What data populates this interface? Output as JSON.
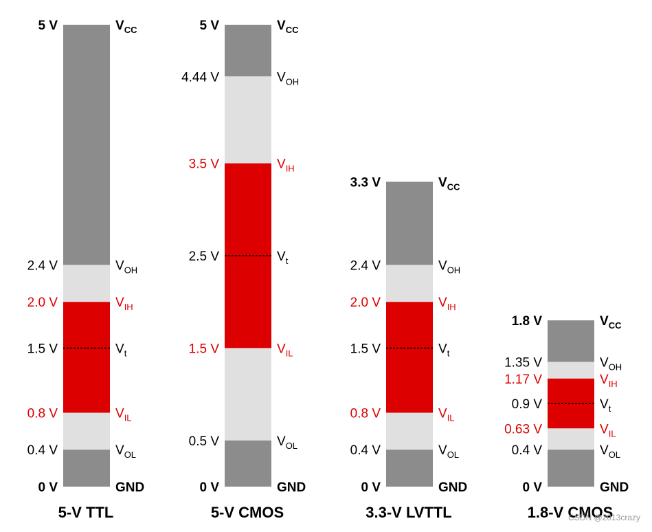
{
  "colors": {
    "gray": "#8c8c8c",
    "light": "#e0e0e0",
    "red": "#dd0000",
    "text": "#000000",
    "red_text": "#dd0000",
    "watermark": "#999999"
  },
  "watermark": "CSDN @2013crazy",
  "diagrams": [
    {
      "id": "ttl5",
      "title": "5-V TTL",
      "vcc": 5.0,
      "vih": 2.0,
      "vil": 0.8,
      "voh": 2.4,
      "vol": 0.4,
      "vt": 1.5,
      "labels": [
        {
          "v": 5.0,
          "left": "5 V",
          "right": "V",
          "sub": "CC",
          "bold": true,
          "red": false
        },
        {
          "v": 2.4,
          "left": "2.4 V",
          "right": "V",
          "sub": "OH",
          "bold": false,
          "red": false
        },
        {
          "v": 2.0,
          "left": "2.0 V",
          "right": "V",
          "sub": "IH",
          "bold": false,
          "red": true
        },
        {
          "v": 1.5,
          "left": "1.5 V",
          "right": "V",
          "sub": "t",
          "bold": false,
          "red": false
        },
        {
          "v": 0.8,
          "left": "0.8 V",
          "right": "V",
          "sub": "IL",
          "bold": false,
          "red": true
        },
        {
          "v": 0.4,
          "left": "0.4 V",
          "right": "V",
          "sub": "OL",
          "bold": false,
          "red": false
        },
        {
          "v": 0.0,
          "left": "0 V",
          "right": "GND",
          "sub": "",
          "bold": true,
          "red": false
        }
      ]
    },
    {
      "id": "cmos5",
      "title": "5-V CMOS",
      "vcc": 5.0,
      "vih": 3.5,
      "vil": 1.5,
      "voh": 4.44,
      "vol": 0.5,
      "vt": 2.5,
      "labels": [
        {
          "v": 5.0,
          "left": "5 V",
          "right": "V",
          "sub": "CC",
          "bold": true,
          "red": false
        },
        {
          "v": 4.44,
          "left": "4.44 V",
          "right": "V",
          "sub": "OH",
          "bold": false,
          "red": false
        },
        {
          "v": 3.5,
          "left": "3.5 V",
          "right": "V",
          "sub": "IH",
          "bold": false,
          "red": true
        },
        {
          "v": 2.5,
          "left": "2.5 V",
          "right": "V",
          "sub": "t",
          "bold": false,
          "red": false
        },
        {
          "v": 1.5,
          "left": "1.5 V",
          "right": "V",
          "sub": "IL",
          "bold": false,
          "red": true
        },
        {
          "v": 0.5,
          "left": "0.5 V",
          "right": "V",
          "sub": "OL",
          "bold": false,
          "red": false
        },
        {
          "v": 0.0,
          "left": "0 V",
          "right": "GND",
          "sub": "",
          "bold": true,
          "red": false
        }
      ]
    },
    {
      "id": "lvttl33",
      "title": "3.3-V LVTTL",
      "vcc": 3.3,
      "vih": 2.0,
      "vil": 0.8,
      "voh": 2.4,
      "vol": 0.4,
      "vt": 1.5,
      "labels": [
        {
          "v": 3.3,
          "left": "3.3 V",
          "right": "V",
          "sub": "CC",
          "bold": true,
          "red": false
        },
        {
          "v": 2.4,
          "left": "2.4 V",
          "right": "V",
          "sub": "OH",
          "bold": false,
          "red": false
        },
        {
          "v": 2.0,
          "left": "2.0 V",
          "right": "V",
          "sub": "IH",
          "bold": false,
          "red": true
        },
        {
          "v": 1.5,
          "left": "1.5 V",
          "right": "V",
          "sub": "t",
          "bold": false,
          "red": false
        },
        {
          "v": 0.8,
          "left": "0.8 V",
          "right": "V",
          "sub": "IL",
          "bold": false,
          "red": true
        },
        {
          "v": 0.4,
          "left": "0.4 V",
          "right": "V",
          "sub": "OL",
          "bold": false,
          "red": false
        },
        {
          "v": 0.0,
          "left": "0 V",
          "right": "GND",
          "sub": "",
          "bold": true,
          "red": false
        }
      ]
    },
    {
      "id": "cmos18",
      "title": "1.8-V CMOS",
      "vcc": 1.8,
      "vih": 1.17,
      "vil": 0.63,
      "voh": 1.35,
      "vol": 0.4,
      "vt": 0.9,
      "labels": [
        {
          "v": 1.8,
          "left": "1.8 V",
          "right": "V",
          "sub": "CC",
          "bold": true,
          "red": false
        },
        {
          "v": 1.35,
          "left": "1.35 V",
          "right": "V",
          "sub": "OH",
          "bold": false,
          "red": false
        },
        {
          "v": 1.17,
          "left": "1.17 V",
          "right": "V",
          "sub": "IH",
          "bold": false,
          "red": true
        },
        {
          "v": 0.9,
          "left": "0.9 V",
          "right": "V",
          "sub": "t",
          "bold": false,
          "red": false
        },
        {
          "v": 0.63,
          "left": "0.63 V",
          "right": "V",
          "sub": "IL",
          "bold": false,
          "red": true
        },
        {
          "v": 0.4,
          "left": "0.4 V",
          "right": "V",
          "sub": "OL",
          "bold": false,
          "red": false
        },
        {
          "v": 0.0,
          "left": "0 V",
          "right": "GND",
          "sub": "",
          "bold": true,
          "red": false
        }
      ]
    }
  ]
}
